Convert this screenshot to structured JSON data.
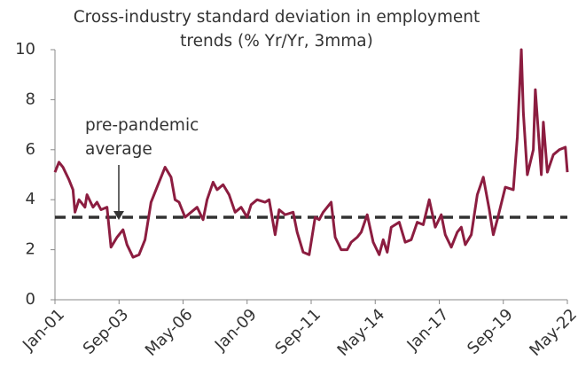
{
  "chart_data": {
    "type": "line",
    "title": "Cross-industry standard deviation in employment trends (% Yr/Yr, 3mma)",
    "x": [
      "Jan-01",
      "Mar-01",
      "May-01",
      "Aug-01",
      "Oct-01",
      "Nov-01",
      "Jan-02",
      "Apr-02",
      "May-02",
      "Aug-02",
      "Oct-02",
      "Dec-02",
      "Mar-03",
      "May-03",
      "Aug-03",
      "Nov-03",
      "Jan-04",
      "Apr-04",
      "Jul-04",
      "Oct-04",
      "Jan-05",
      "Apr-05",
      "Aug-05",
      "Nov-05",
      "Jan-06",
      "Mar-06",
      "Jun-06",
      "Sep-06",
      "Dec-06",
      "Mar-07",
      "May-07",
      "Aug-07",
      "Oct-07",
      "Jan-08",
      "Apr-08",
      "Jul-08",
      "Oct-08",
      "Jan-09",
      "Mar-09",
      "Jun-09",
      "Oct-09",
      "Dec-09",
      "Mar-10",
      "May-10",
      "Aug-10",
      "Dec-10",
      "Feb-11",
      "May-11",
      "Aug-11",
      "Nov-11",
      "Jan-12",
      "Mar-12",
      "Jul-12",
      "Sep-12",
      "Dec-12",
      "Mar-13",
      "May-13",
      "Aug-13",
      "Oct-13",
      "Jan-14",
      "Apr-14",
      "Jul-14",
      "Sep-14",
      "Nov-14",
      "Jan-15",
      "May-15",
      "Aug-15",
      "Nov-15",
      "Feb-16",
      "May-16",
      "Aug-16",
      "Nov-16",
      "Feb-17",
      "Apr-17",
      "Jul-17",
      "Oct-17",
      "Dec-17",
      "Feb-18",
      "May-18",
      "Aug-18",
      "Nov-18",
      "Feb-19",
      "Apr-19",
      "Jun-19",
      "Oct-19",
      "Feb-20",
      "Apr-20",
      "Jun-20",
      "Jul-20",
      "Sep-20",
      "Dec-20",
      "Jan-21",
      "Apr-21",
      "May-21",
      "Jul-21",
      "Oct-21",
      "Jan-22",
      "Apr-22",
      "May-22"
    ],
    "series": [
      {
        "color": "#8c1d40",
        "values": [
          5.1,
          5.5,
          5.3,
          4.8,
          4.4,
          3.5,
          4.0,
          3.7,
          4.2,
          3.7,
          3.9,
          3.6,
          3.7,
          2.1,
          2.5,
          2.8,
          2.2,
          1.7,
          1.8,
          2.4,
          3.9,
          4.5,
          5.3,
          4.9,
          4.0,
          3.9,
          3.3,
          3.5,
          3.7,
          3.2,
          4.0,
          4.7,
          4.4,
          4.6,
          4.2,
          3.5,
          3.7,
          3.3,
          3.8,
          4.0,
          3.9,
          4.0,
          2.6,
          3.6,
          3.4,
          3.5,
          2.7,
          1.9,
          1.8,
          3.3,
          3.2,
          3.5,
          3.9,
          2.5,
          2.0,
          2.0,
          2.3,
          2.5,
          2.7,
          3.4,
          2.3,
          1.8,
          2.4,
          1.9,
          2.9,
          3.1,
          2.3,
          2.4,
          3.1,
          3.0,
          4.0,
          2.9,
          3.4,
          2.6,
          2.1,
          2.7,
          2.9,
          2.2,
          2.6,
          4.2,
          4.9,
          3.6,
          2.6,
          3.2,
          4.5,
          4.4,
          6.5,
          10.0,
          7.5,
          5.0,
          6.0,
          8.4,
          5.0,
          7.1,
          5.1,
          5.8,
          6.0,
          6.1,
          5.1
        ]
      }
    ],
    "xlim": [
      "Jan-01",
      "May-22"
    ],
    "xticks": [
      "Jan-01",
      "Sep-03",
      "May-06",
      "Jan-09",
      "Sep-11",
      "May-14",
      "Jan-17",
      "Sep-19",
      "May-22"
    ],
    "ylim": [
      0,
      10
    ],
    "yticks": [
      0,
      2,
      4,
      6,
      8,
      10
    ],
    "reference_line": {
      "value": 3.3,
      "label": "pre-pandemic average",
      "color": "#333333"
    }
  }
}
